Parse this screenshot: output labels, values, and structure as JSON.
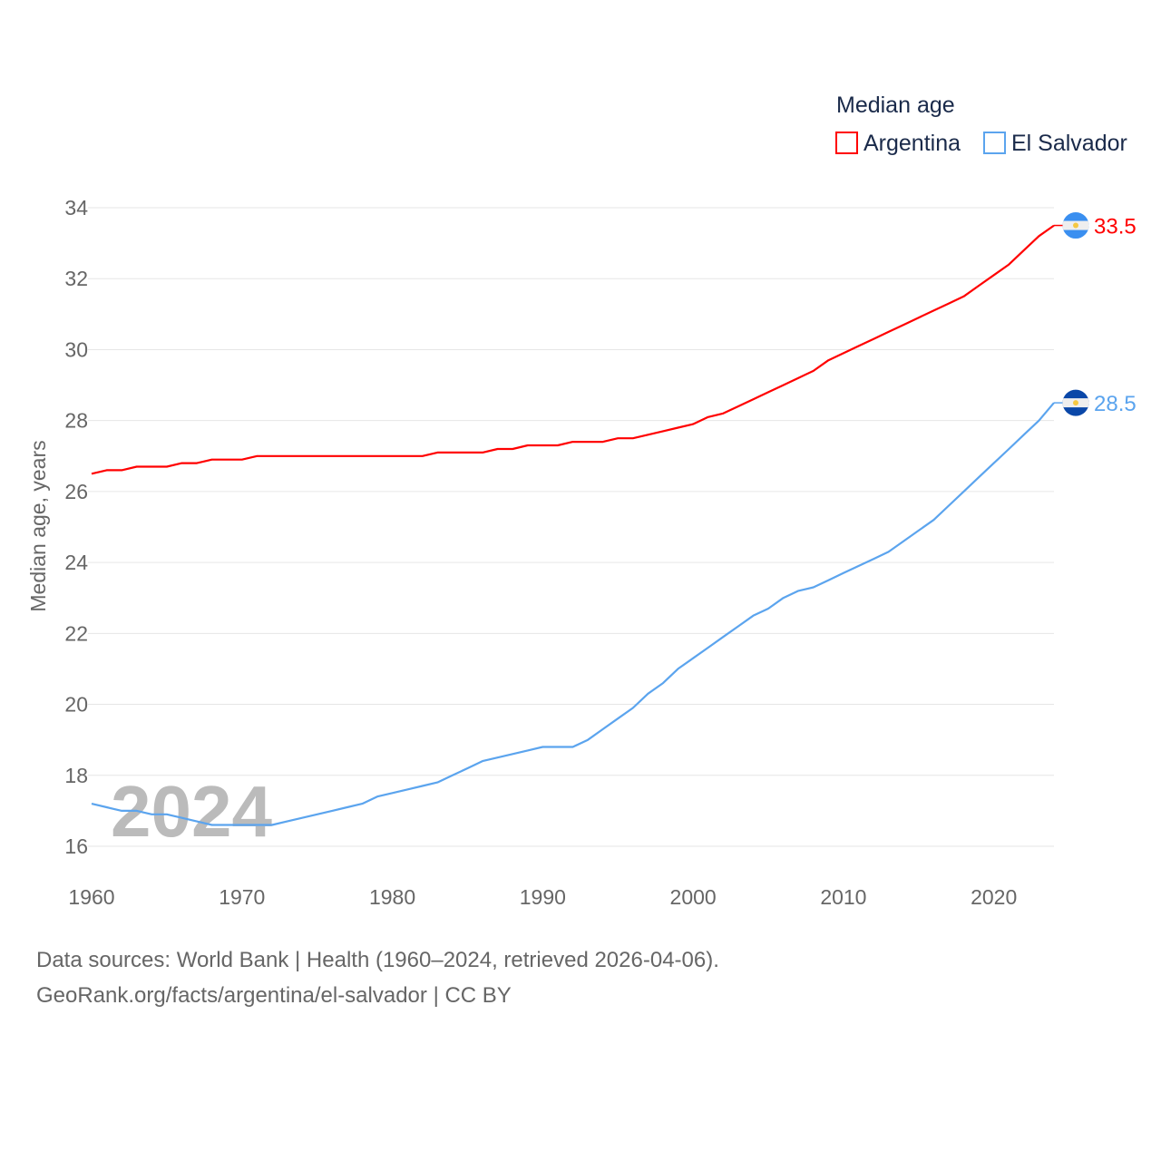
{
  "chart_data": {
    "type": "line",
    "legend_title": "Median age",
    "legend_placement": "top-right",
    "ylabel": "Median age, years",
    "xlabel": "",
    "ylim": [
      16,
      34
    ],
    "xlim": [
      1960,
      2024
    ],
    "yticks": [
      "16",
      "18",
      "20",
      "22",
      "24",
      "26",
      "28",
      "30",
      "32",
      "34"
    ],
    "xticks": [
      "1960",
      "1970",
      "1980",
      "1990",
      "2000",
      "2010",
      "2020"
    ],
    "grid": true,
    "year_watermark": "2024",
    "x": [
      1960,
      1961,
      1962,
      1963,
      1964,
      1965,
      1966,
      1967,
      1968,
      1969,
      1970,
      1971,
      1972,
      1973,
      1974,
      1975,
      1976,
      1977,
      1978,
      1979,
      1980,
      1981,
      1982,
      1983,
      1984,
      1985,
      1986,
      1987,
      1988,
      1989,
      1990,
      1991,
      1992,
      1993,
      1994,
      1995,
      1996,
      1997,
      1998,
      1999,
      2000,
      2001,
      2002,
      2003,
      2004,
      2005,
      2006,
      2007,
      2008,
      2009,
      2010,
      2011,
      2012,
      2013,
      2014,
      2015,
      2016,
      2017,
      2018,
      2019,
      2020,
      2021,
      2022,
      2023,
      2024
    ],
    "series": [
      {
        "name": "Argentina",
        "color": "#ff0000",
        "end_label": "33.5",
        "flag": "argentina-flag",
        "values": [
          26.5,
          26.6,
          26.6,
          26.7,
          26.7,
          26.7,
          26.8,
          26.8,
          26.9,
          26.9,
          26.9,
          27.0,
          27.0,
          27.0,
          27.0,
          27.0,
          27.0,
          27.0,
          27.0,
          27.0,
          27.0,
          27.0,
          27.0,
          27.1,
          27.1,
          27.1,
          27.1,
          27.2,
          27.2,
          27.3,
          27.3,
          27.3,
          27.4,
          27.4,
          27.4,
          27.5,
          27.5,
          27.6,
          27.7,
          27.8,
          27.9,
          28.1,
          28.2,
          28.4,
          28.6,
          28.8,
          29.0,
          29.2,
          29.4,
          29.7,
          29.9,
          30.1,
          30.3,
          30.5,
          30.7,
          30.9,
          31.1,
          31.3,
          31.5,
          31.8,
          32.1,
          32.4,
          32.8,
          33.2,
          33.5
        ]
      },
      {
        "name": "El Salvador",
        "color": "#5ba4ee",
        "end_label": "28.5",
        "flag": "el-salvador-flag",
        "values": [
          17.2,
          17.1,
          17.0,
          17.0,
          16.9,
          16.9,
          16.8,
          16.7,
          16.6,
          16.6,
          16.6,
          16.6,
          16.6,
          16.7,
          16.8,
          16.9,
          17.0,
          17.1,
          17.2,
          17.4,
          17.5,
          17.6,
          17.7,
          17.8,
          18.0,
          18.2,
          18.4,
          18.5,
          18.6,
          18.7,
          18.8,
          18.8,
          18.8,
          19.0,
          19.3,
          19.6,
          19.9,
          20.3,
          20.6,
          21.0,
          21.3,
          21.6,
          21.9,
          22.2,
          22.5,
          22.7,
          23.0,
          23.2,
          23.3,
          23.5,
          23.7,
          23.9,
          24.1,
          24.3,
          24.6,
          24.9,
          25.2,
          25.6,
          26.0,
          26.4,
          26.8,
          27.2,
          27.6,
          28.0,
          28.5
        ]
      }
    ]
  },
  "footer": {
    "line1": "Data sources: World Bank | Health (1960–2024, retrieved 2026-04-06).",
    "line2": "GeoRank.org/facts/argentina/el-salvador | CC BY"
  }
}
